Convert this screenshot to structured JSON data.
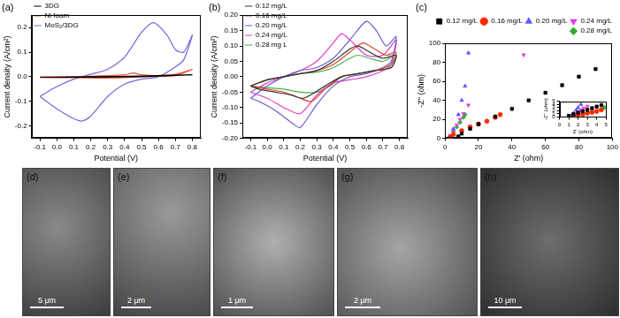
{
  "chart_data": [
    {
      "type": "line",
      "title": "(a)",
      "x_label": "Potential (V)",
      "y_label": "Current density (A/cm²)",
      "xlim": [
        -0.15,
        0.85
      ],
      "xticks": [
        -0.1,
        {
          "value": 0,
          "label": "0.0"
        },
        0.1,
        0.2,
        0.3,
        0.4,
        0.5,
        0.6,
        0.7,
        0.8
      ],
      "ylim": [
        -0.25,
        0.25
      ],
      "yticks": [
        -0.2,
        -0.1,
        {
          "value": 0,
          "label": "0.0"
        },
        0.1,
        0.2
      ],
      "grid": false,
      "legend": "upper left",
      "series": [
        {
          "name": "3DG",
          "color": "#000000",
          "x": [
            -0.1,
            0.2,
            0.5,
            0.8,
            0.5,
            0.2,
            -0.1
          ],
          "values": [
            -0.003,
            0,
            0.003,
            0.008,
            0.001,
            -0.002,
            -0.003
          ]
        },
        {
          "name": "Ni foam",
          "color": "#e8553a",
          "x": [
            -0.1,
            0.2,
            0.4,
            0.45,
            0.5,
            0.6,
            0.7,
            0.8,
            0.7,
            0.5,
            0.3,
            0.1,
            -0.1
          ],
          "values": [
            0,
            0.002,
            0.008,
            0.015,
            0.008,
            0.005,
            0.01,
            0.03,
            0.005,
            0,
            -0.005,
            -0.003,
            0
          ]
        },
        {
          "name": "MoS₂/3DG",
          "color": "#7468e0",
          "x": [
            -0.1,
            0,
            0.1,
            0.2,
            0.3,
            0.4,
            0.5,
            0.57,
            0.65,
            0.7,
            0.75,
            0.8,
            0.75,
            0.7,
            0.6,
            0.5,
            0.4,
            0.3,
            0.2,
            0.15,
            0.1,
            0,
            -0.1
          ],
          "values": [
            -0.08,
            -0.04,
            -0.01,
            0.01,
            0.03,
            0.08,
            0.18,
            0.22,
            0.17,
            0.11,
            0.1,
            0.17,
            0.07,
            0.04,
            0,
            -0.01,
            -0.03,
            -0.08,
            -0.16,
            -0.18,
            -0.17,
            -0.13,
            -0.08
          ]
        }
      ]
    },
    {
      "type": "line",
      "title": "(b)",
      "x_label": "Potential (V)",
      "y_label": "Current density (A/cm²)",
      "xlim": [
        -0.15,
        0.85
      ],
      "xticks": [
        -0.1,
        {
          "value": 0,
          "label": "0.0"
        },
        0.1,
        0.2,
        0.3,
        0.4,
        0.5,
        0.6,
        0.7,
        0.8
      ],
      "ylim": [
        -0.2,
        0.2
      ],
      "yticks": [
        {
          "value": -0.2,
          "label": "-0.20"
        },
        -0.15,
        {
          "value": -0.1,
          "label": "-0.10"
        },
        -0.05,
        {
          "value": 0,
          "label": "0.00"
        },
        0.05,
        {
          "value": 0.1,
          "label": "0.10"
        },
        0.15,
        {
          "value": 0.2,
          "label": "0.20"
        }
      ],
      "grid": false,
      "legend": "upper left",
      "series": [
        {
          "name": "0.12 mg/L",
          "color": "#333333",
          "x": [
            -0.1,
            0,
            0.1,
            0.2,
            0.3,
            0.4,
            0.5,
            0.55,
            0.62,
            0.7,
            0.78,
            0.75,
            0.65,
            0.55,
            0.45,
            0.35,
            0.22,
            0.15,
            0.05,
            -0.05,
            -0.1
          ],
          "values": [
            -0.03,
            -0.01,
            0,
            0.01,
            0.02,
            0.05,
            0.09,
            0.1,
            0.08,
            0.06,
            0.07,
            0.03,
            0.02,
            0.01,
            0,
            -0.03,
            -0.07,
            -0.06,
            -0.05,
            -0.04,
            -0.03
          ]
        },
        {
          "name": "0.16 mg/L",
          "color": "#e0442b",
          "x": [
            -0.1,
            0,
            0.1,
            0.2,
            0.3,
            0.4,
            0.5,
            0.58,
            0.65,
            0.72,
            0.78,
            0.75,
            0.65,
            0.55,
            0.45,
            0.35,
            0.27,
            0.2,
            0.1,
            0,
            -0.1
          ],
          "values": [
            -0.03,
            -0.01,
            0,
            0.01,
            0.02,
            0.04,
            0.08,
            0.11,
            0.09,
            0.07,
            0.08,
            0.04,
            0.02,
            0.01,
            0,
            -0.04,
            -0.08,
            -0.07,
            -0.05,
            -0.04,
            -0.03
          ]
        },
        {
          "name": "0.20 mg/L",
          "color": "#6a5acd",
          "x": [
            -0.1,
            0,
            0.1,
            0.2,
            0.3,
            0.4,
            0.5,
            0.6,
            0.66,
            0.72,
            0.78,
            0.75,
            0.7,
            0.6,
            0.5,
            0.4,
            0.3,
            0.2,
            0.15,
            0.05,
            -0.05,
            -0.1
          ],
          "values": [
            -0.07,
            -0.03,
            0,
            0.02,
            0.03,
            0.06,
            0.12,
            0.18,
            0.15,
            0.1,
            0.13,
            0.05,
            0.03,
            0.01,
            0,
            -0.03,
            -0.09,
            -0.165,
            -0.15,
            -0.11,
            -0.08,
            -0.07
          ]
        },
        {
          "name": "0.24 mg/L",
          "color": "#e040c0",
          "x": [
            -0.1,
            0,
            0.1,
            0.2,
            0.3,
            0.4,
            0.45,
            0.5,
            0.6,
            0.7,
            0.78,
            0.75,
            0.7,
            0.6,
            0.5,
            0.4,
            0.3,
            0.2,
            0.1,
            0,
            -0.1
          ],
          "values": [
            -0.05,
            -0.02,
            0,
            0.02,
            0.05,
            0.11,
            0.14,
            0.12,
            0.07,
            0.07,
            0.12,
            0.04,
            0.02,
            0,
            -0.01,
            -0.02,
            -0.06,
            -0.12,
            -0.1,
            -0.07,
            -0.05
          ]
        },
        {
          "name": "0.28 mg L",
          "color": "#4caf50",
          "x": [
            -0.1,
            0,
            0.1,
            0.2,
            0.3,
            0.4,
            0.5,
            0.55,
            0.62,
            0.7,
            0.78,
            0.75,
            0.65,
            0.55,
            0.45,
            0.38,
            0.3,
            0.2,
            0.1,
            0,
            -0.1
          ],
          "values": [
            -0.03,
            -0.01,
            0,
            0.01,
            0.015,
            0.03,
            0.06,
            0.07,
            0.06,
            0.05,
            0.07,
            0.03,
            0.02,
            0.01,
            0,
            -0.03,
            -0.05,
            -0.05,
            -0.04,
            -0.035,
            -0.03
          ]
        }
      ]
    },
    {
      "type": "scatter",
      "title": "(c)",
      "x_label": "Z' (ohm)",
      "y_label": "-Z'' (ohm)",
      "xlim": [
        0,
        100
      ],
      "xticks": [
        0,
        20,
        40,
        60,
        80,
        100
      ],
      "ylim": [
        0,
        100
      ],
      "yticks": [
        0,
        20,
        40,
        60,
        80,
        100
      ],
      "grid": false,
      "legend": "top",
      "series": [
        {
          "name": "0.12 mg/L",
          "color": "#000000",
          "marker": "square",
          "x": [
            8,
            10,
            15,
            20,
            30,
            40,
            50,
            60,
            70,
            80,
            90
          ],
          "values": [
            2,
            5,
            10,
            15,
            23,
            31,
            40,
            48,
            56,
            65,
            73
          ]
        },
        {
          "name": "0.16 mg/L",
          "color": "#ff2a00",
          "marker": "circle",
          "x": [
            3,
            5,
            10,
            15,
            20,
            25,
            30,
            33
          ],
          "values": [
            1,
            4,
            8,
            12,
            15,
            18,
            22,
            25
          ]
        },
        {
          "name": "0.20 mg/L",
          "color": "#5a5aff",
          "marker": "triangle",
          "x": [
            3,
            5,
            8,
            10,
            12,
            14
          ],
          "values": [
            2,
            10,
            25,
            40,
            55,
            90
          ]
        },
        {
          "name": "0.24 mg/L",
          "color": "#e040e0",
          "marker": "triangle_down",
          "x": [
            3,
            5,
            7,
            9,
            11,
            14,
            47
          ],
          "values": [
            3,
            8,
            14,
            20,
            26,
            35,
            88
          ]
        },
        {
          "name": "0.28 mg/L",
          "color": "#33aa33",
          "marker": "diamond",
          "x": [
            3,
            5,
            7,
            9,
            11,
            12
          ],
          "values": [
            2,
            7,
            12,
            17,
            22,
            25
          ]
        }
      ]
    },
    {
      "type": "scatter",
      "x_label": "Z' (ohm)",
      "y_label": "-Z'' (ohm)",
      "xlim": [
        0,
        5
      ],
      "xticks": [
        0,
        1,
        2,
        3,
        4,
        5
      ],
      "ylim": [
        0,
        5
      ],
      "yticks": [
        0,
        1,
        2,
        3,
        4,
        5
      ],
      "grid": false,
      "series": [
        {
          "color": "#000000",
          "marker": "square",
          "x": [
            1,
            1.5,
            2,
            2.5,
            3,
            3.5,
            4,
            4.5
          ],
          "values": [
            0.4,
            0.9,
            1.4,
            1.8,
            2.3,
            2.8,
            3.3,
            3.8
          ]
        },
        {
          "color": "#ff2a00",
          "marker": "circle",
          "x": [
            1.5,
            2,
            2.5,
            3,
            3.5,
            4,
            4.5
          ],
          "values": [
            0.1,
            0.6,
            0.9,
            1.2,
            1.5,
            1.8,
            2.3
          ]
        },
        {
          "color": "#5a5aff",
          "marker": "triangle",
          "x": [
            1.2,
            1.5,
            1.8,
            2,
            2.3
          ],
          "values": [
            0.3,
            1.2,
            2.2,
            3,
            4
          ]
        },
        {
          "color": "#e040e0",
          "marker": "triangle_down",
          "x": [
            1.3,
            1.7,
            2,
            2.3,
            2.6,
            3
          ],
          "values": [
            0.3,
            1,
            1.6,
            2.2,
            2.8,
            3.4
          ]
        },
        {
          "color": "#33aa33",
          "marker": "diamond",
          "x": [
            1.5,
            2,
            3,
            3.5,
            4,
            4.5,
            4.8
          ],
          "values": [
            0.2,
            0.8,
            1.5,
            1.6,
            1.7,
            2.4,
            3
          ]
        }
      ]
    }
  ],
  "images": [
    {
      "label": "(d)",
      "scale_bar": "5 μm"
    },
    {
      "label": "(e)",
      "scale_bar": "2 μm"
    },
    {
      "label": "(f)",
      "scale_bar": "1 μm"
    },
    {
      "label": "(g)",
      "scale_bar": "2 μm"
    },
    {
      "label": "(h)",
      "scale_bar": "10 μm"
    }
  ]
}
